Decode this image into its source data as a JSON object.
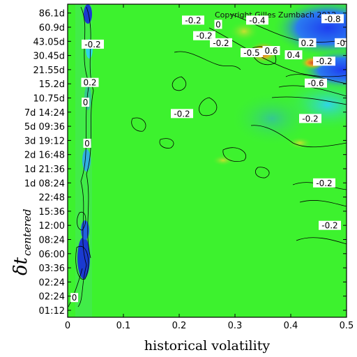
{
  "chart_data": {
    "type": "heatmap",
    "title": "",
    "xlabel": "historical volatility",
    "ylabel": "δt",
    "ylabel_subscript": "centered",
    "xlim": [
      0,
      0.5
    ],
    "x_ticks": [
      "0",
      "0.1",
      "0.2",
      "0.3",
      "0.4",
      "0.5"
    ],
    "y_ticks": [
      "01:12",
      "02:24",
      "02:24",
      "03:36",
      "06:00",
      "08:24",
      "12:00",
      "15:36",
      "22:48",
      "1d 08:24",
      "1d 21:36",
      "2d 16:48",
      "3d 19:12",
      "5d 09:36",
      "7d 14:24",
      "10.75d",
      "15.2d",
      "21.55d",
      "30.45d",
      "43.05d",
      "60.9d",
      "86.1d"
    ],
    "contour_labels": [
      {
        "text": "-0.2",
        "x": 0.225,
        "y_index": 20.5
      },
      {
        "text": "0",
        "x": 0.27,
        "y_index": 20.2
      },
      {
        "text": "-0.4",
        "x": 0.34,
        "y_index": 20.5
      },
      {
        "text": "-0.8",
        "x": 0.475,
        "y_index": 20.6
      },
      {
        "text": "-0.2",
        "x": 0.245,
        "y_index": 19.4
      },
      {
        "text": "-0.2",
        "x": 0.275,
        "y_index": 18.9
      },
      {
        "text": "-0.5",
        "x": 0.33,
        "y_index": 18.2
      },
      {
        "text": "0.6",
        "x": 0.365,
        "y_index": 18.35
      },
      {
        "text": "0.2",
        "x": 0.43,
        "y_index": 18.9
      },
      {
        "text": "0.4",
        "x": 0.405,
        "y_index": 18.05
      },
      {
        "text": "-0.2",
        "x": 0.46,
        "y_index": 17.6
      },
      {
        "text": "-0",
        "x": 0.49,
        "y_index": 18.9
      },
      {
        "text": "-0.6",
        "x": 0.445,
        "y_index": 16.05
      },
      {
        "text": "-0.2",
        "x": 0.205,
        "y_index": 13.9
      },
      {
        "text": "-0.2",
        "x": 0.435,
        "y_index": 13.55
      },
      {
        "text": "-0.2",
        "x": 0.46,
        "y_index": 9.0
      },
      {
        "text": "-0.2",
        "x": 0.47,
        "y_index": 6.0
      },
      {
        "text": "-0.2",
        "x": 0.045,
        "y_index": 18.8
      },
      {
        "text": "0.2",
        "x": 0.04,
        "y_index": 16.1
      },
      {
        "text": "0",
        "x": 0.032,
        "y_index": 14.7
      },
      {
        "text": "0",
        "x": 0.035,
        "y_index": 11.8
      },
      {
        "text": "0",
        "x": 0.012,
        "y_index": 0.9
      }
    ],
    "colormap": "blue-cyan-green-yellow-orange-red",
    "background_value_color": "#3df22e",
    "grid": false
  },
  "annotations": {
    "copyright": "Copyright Gilles Zumbach 2012"
  }
}
